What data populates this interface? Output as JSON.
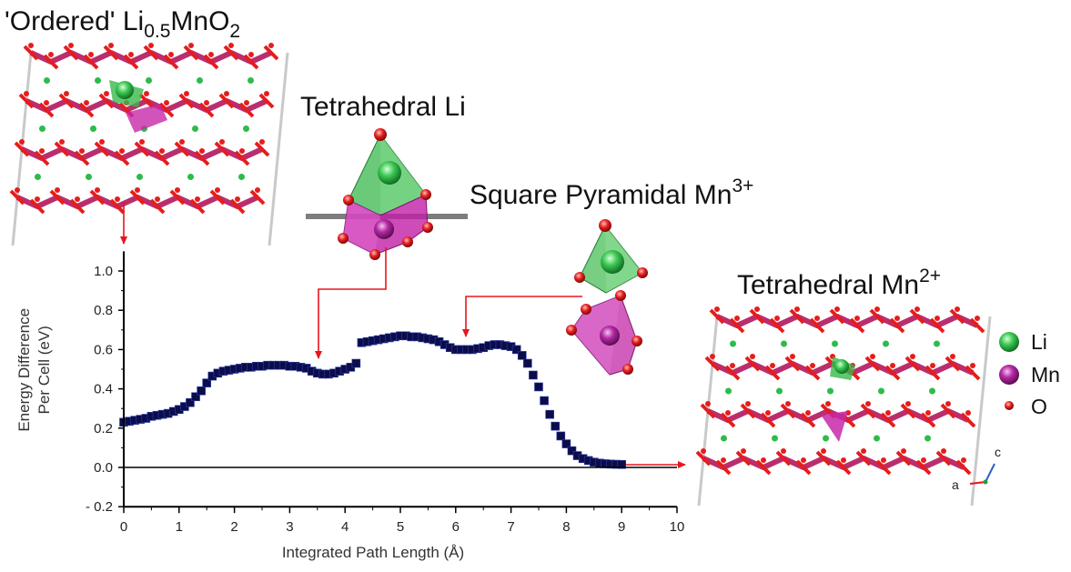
{
  "annotations": {
    "ordered": {
      "prefix": "'Ordered' Li",
      "sub": "0.5",
      "mid": "MnO",
      "sub2": "2"
    },
    "tet_li": "Tetrahedral Li",
    "sq_pyr": {
      "text": "Square Pyramidal Mn",
      "sup": "3+"
    },
    "tet_mn": {
      "text": "Tetrahedral Mn",
      "sup": "2+"
    }
  },
  "legend": [
    {
      "label": "Li",
      "color": "#2fb84a"
    },
    {
      "label": "Mn",
      "color": "#b0209a"
    },
    {
      "label": "O",
      "color": "#e01818"
    }
  ],
  "axes_glyph": {
    "a": "a",
    "c": "c"
  },
  "colors": {
    "marker": "#0c0c4a",
    "arrow": "#e8161c",
    "mn_layer": "#b3175e",
    "o_atom": "#e51d1d",
    "li_atom": "#2dbb4c",
    "tet_green": "#39b84c",
    "pyr_magenta": "#c728a8"
  },
  "chart_data": {
    "type": "scatter",
    "xlabel": "Integrated Path Length (Å)",
    "ylabel": [
      "Energy Difference",
      "Per Cell (eV)"
    ],
    "xlim": [
      0,
      10
    ],
    "ylim": [
      -0.2,
      1.1
    ],
    "xticks": [
      0,
      1,
      2,
      3,
      4,
      5,
      6,
      7,
      8,
      9,
      10
    ],
    "yticks": [
      -0.2,
      0.0,
      0.2,
      0.4,
      0.6,
      0.8,
      1.0
    ],
    "ytick_labels": [
      "- 0.2",
      "0.0",
      "0.2",
      "0.4",
      "0.6",
      "0.8",
      "1.0"
    ],
    "baseline_y": 0.0,
    "series": [
      {
        "x": [
          0.0,
          0.1,
          0.2,
          0.3,
          0.4,
          0.5,
          0.6,
          0.7,
          0.8,
          0.9,
          1.0,
          1.1,
          1.2,
          1.3,
          1.4,
          1.5,
          1.6,
          1.7,
          1.8,
          1.9,
          2.0,
          2.1,
          2.2,
          2.3,
          2.4,
          2.5,
          2.6,
          2.7,
          2.8,
          2.9,
          3.0,
          3.1,
          3.2,
          3.3,
          3.4,
          3.5,
          3.6,
          3.7,
          3.8,
          3.9,
          4.0,
          4.1,
          4.2,
          4.3,
          4.4,
          4.5,
          4.6,
          4.7,
          4.8,
          4.9,
          5.0,
          5.1,
          5.2,
          5.3,
          5.4,
          5.5,
          5.6,
          5.7,
          5.8,
          5.9,
          6.0,
          6.1,
          6.2,
          6.3,
          6.4,
          6.5,
          6.6,
          6.7,
          6.8,
          6.9,
          7.0,
          7.1,
          7.2,
          7.3,
          7.4,
          7.5,
          7.6,
          7.7,
          7.8,
          7.9,
          8.0,
          8.1,
          8.2,
          8.3,
          8.4,
          8.5,
          8.6,
          8.7,
          8.8,
          8.9,
          9.0
        ],
        "y": [
          0.23,
          0.235,
          0.24,
          0.245,
          0.25,
          0.26,
          0.265,
          0.27,
          0.275,
          0.285,
          0.295,
          0.31,
          0.33,
          0.36,
          0.39,
          0.43,
          0.465,
          0.48,
          0.49,
          0.495,
          0.5,
          0.505,
          0.51,
          0.51,
          0.515,
          0.515,
          0.52,
          0.52,
          0.52,
          0.52,
          0.515,
          0.515,
          0.51,
          0.505,
          0.49,
          0.48,
          0.475,
          0.475,
          0.48,
          0.49,
          0.5,
          0.51,
          0.53,
          0.635,
          0.64,
          0.645,
          0.65,
          0.655,
          0.66,
          0.665,
          0.67,
          0.67,
          0.665,
          0.665,
          0.66,
          0.655,
          0.65,
          0.64,
          0.625,
          0.61,
          0.6,
          0.6,
          0.6,
          0.6,
          0.605,
          0.61,
          0.62,
          0.625,
          0.625,
          0.62,
          0.615,
          0.6,
          0.57,
          0.53,
          0.47,
          0.41,
          0.34,
          0.27,
          0.21,
          0.16,
          0.12,
          0.085,
          0.06,
          0.045,
          0.035,
          0.027,
          0.022,
          0.019,
          0.017,
          0.016,
          0.015
        ]
      }
    ]
  }
}
